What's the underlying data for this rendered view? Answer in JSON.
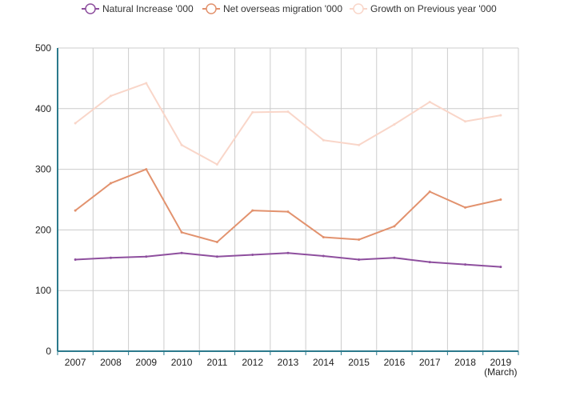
{
  "chart_data": {
    "type": "line",
    "title": "",
    "xlabel": "",
    "ylabel": "",
    "categories": [
      "2007",
      "2008",
      "2009",
      "2010",
      "2011",
      "2012",
      "2013",
      "2014",
      "2015",
      "2016",
      "2017",
      "2018",
      "2019"
    ],
    "category_sublabels": [
      "",
      "",
      "",
      "",
      "",
      "",
      "",
      "",
      "",
      "",
      "",
      "",
      "(March)"
    ],
    "ylim": [
      0,
      500
    ],
    "yticks": [
      "0",
      "100",
      "200",
      "300",
      "400",
      "500"
    ],
    "grid": true,
    "legend_position": "top",
    "series": [
      {
        "name": "Natural Increase '000",
        "color": "#8e4f9e",
        "values": [
          151,
          154,
          156,
          162,
          156,
          159,
          162,
          157,
          151,
          154,
          147,
          143,
          139
        ]
      },
      {
        "name": "Net overseas migration '000",
        "color": "#e2926e",
        "values": [
          232,
          277,
          300,
          196,
          180,
          232,
          230,
          188,
          184,
          206,
          263,
          237,
          250
        ]
      },
      {
        "name": "Growth on Previous year '000",
        "color": "#f9d6c9",
        "values": [
          376,
          421,
          442,
          340,
          308,
          394,
          395,
          348,
          340,
          374,
          411,
          379,
          389
        ]
      }
    ]
  }
}
